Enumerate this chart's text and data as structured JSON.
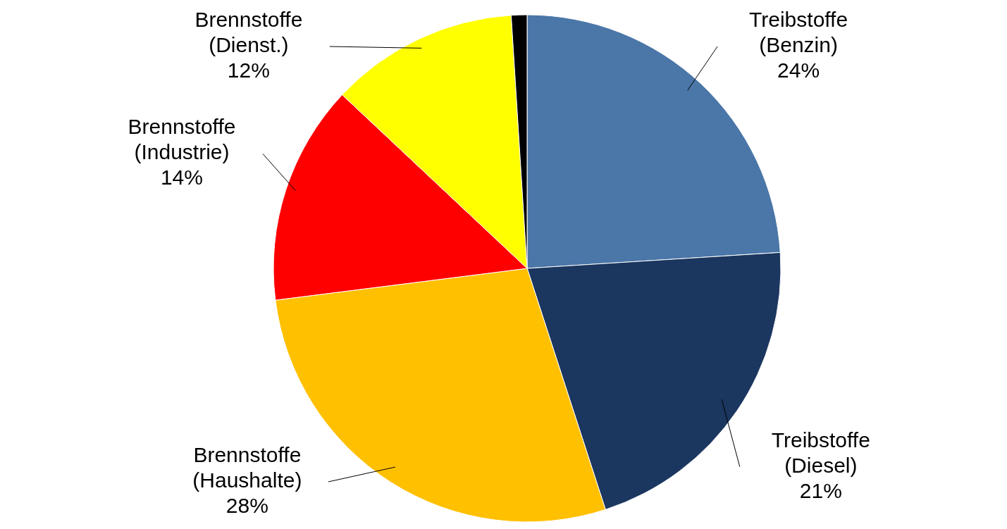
{
  "chart_data": {
    "type": "pie",
    "categories": [
      "Treibstoffe (Benzin)",
      "Treibstoffe (Diesel)",
      "Brennstoffe (Haushalte)",
      "Brennstoffe (Industrie)",
      "Brennstoffe (Dienst.)",
      null
    ],
    "values": [
      24,
      21,
      28,
      14,
      12,
      1
    ],
    "value_labels": [
      "24%",
      "21%",
      "28%",
      "14%",
      "12%",
      null
    ],
    "colors": [
      "#4a76a8",
      "#1b365f",
      "#ffc000",
      "#ff0000",
      "#ffff00",
      "#000000"
    ],
    "legend": false
  }
}
